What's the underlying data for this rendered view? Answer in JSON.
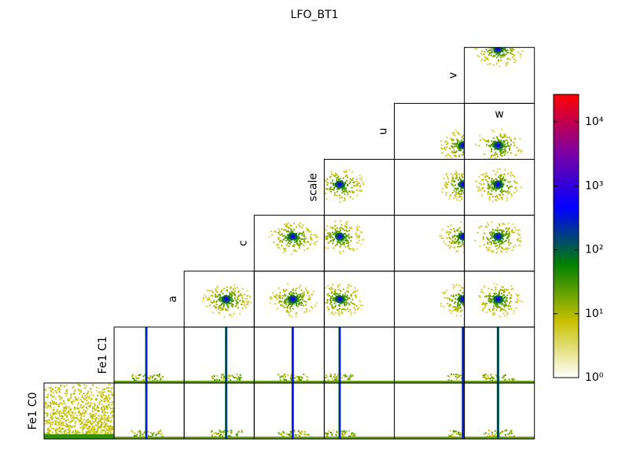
{
  "chart_data": {
    "type": "pair-histogram",
    "title": "LFO_BT1",
    "labels": [
      "Fe1 C0",
      "Fe1 C1",
      "a",
      "c",
      "scale",
      "u",
      "v",
      "w"
    ],
    "colorbar": {
      "scale": "log",
      "lim": [
        1,
        27000
      ],
      "ticks": [
        {
          "value": 1,
          "label": "10⁰"
        },
        {
          "value": 10,
          "label": "10¹"
        },
        {
          "value": 100,
          "label": "10²"
        },
        {
          "value": 1000,
          "label": "10³"
        },
        {
          "value": 10000,
          "label": "10⁴"
        }
      ],
      "colors": [
        "#ffffff",
        "#c8c000",
        "#008000",
        "#0000ff",
        "#8000a0",
        "#ff0000"
      ]
    }
  }
}
